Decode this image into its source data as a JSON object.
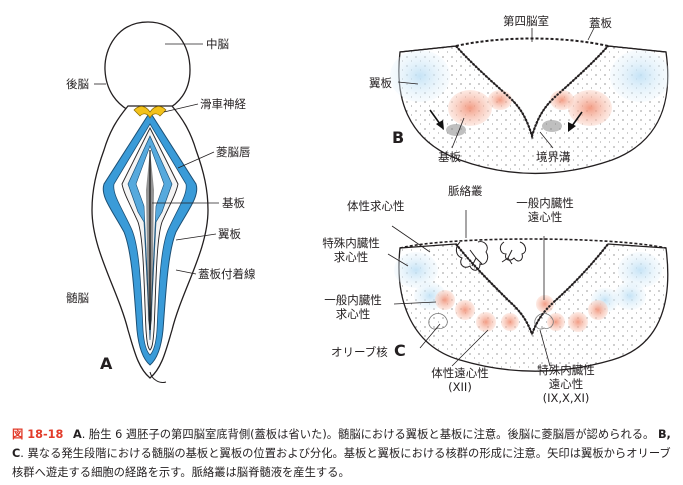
{
  "panels": {
    "A": "A",
    "B": "B",
    "C": "C"
  },
  "panel_a_labels": {
    "midbrain": "中脳",
    "hindbrain": "後脳",
    "trochlear": "滑車神経",
    "rhombic_lip": "菱脳唇",
    "basal_plate": "基板",
    "alar_plate": "翼板",
    "roof_attach": "蓋板付着線",
    "myelencephalon": "髄脳"
  },
  "panel_b_labels": {
    "fourth_ventricle": "第四脳室",
    "roof_plate": "蓋板",
    "alar_plate": "翼板",
    "basal_plate": "基板",
    "sulcus_limitans": "境界溝"
  },
  "panel_c_labels": {
    "choroid_plexus": "脈絡叢",
    "somatic_afferent": "体性求心性",
    "special_visceral_afferent": [
      "特殊内臓性",
      "求心性"
    ],
    "general_visceral_efferent": [
      "一般内臓性",
      "遠心性"
    ],
    "general_visceral_afferent": [
      "一般内臓性",
      "求心性"
    ],
    "olive": "オリーブ核",
    "somatic_efferent": [
      "体性遠心性",
      "(XII)"
    ],
    "special_visceral_efferent": [
      "特殊内臓性",
      "遠心性",
      "(IX,X,XI)"
    ]
  },
  "caption": {
    "figure_number": "図 18-18",
    "text_a_label": "A",
    "text_a": ". 胎生 6 週胚子の第四脳室底背側(蓋板は省いた)。髄脳における翼板と基板に注意。後脳に菱脳唇が認められる。",
    "text_bc_label": "B, C",
    "text_bc": ". 異なる発生段階における髄脳の基板と翼板の位置および分化。基板と翼板における核群の形成に注意。矢印は翼板からオリーブ核群へ遊走する細胞の経路を示す。脈絡叢は脳脊髄液を産生する。"
  },
  "colors": {
    "alar_blue": "#3a9bd8",
    "light_blue": "#cfe7f6",
    "basal_red": "#e8705a",
    "trochlear_yellow": "#f3c21b",
    "caption_red": "#e23b2a"
  }
}
